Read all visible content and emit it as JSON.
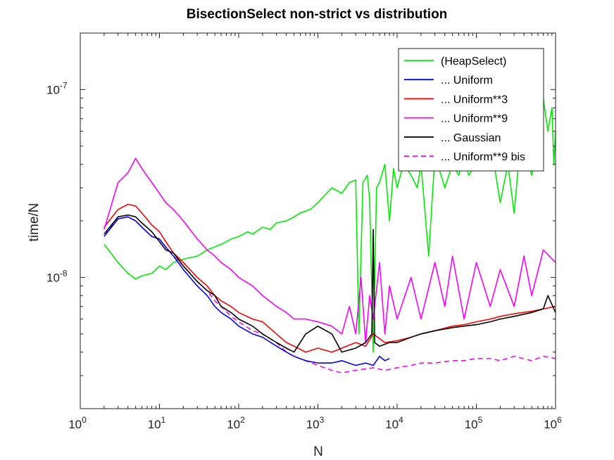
{
  "chart_data": {
    "type": "line",
    "title": "BisectionSelect non-strict vs distribution",
    "xlabel": "N",
    "ylabel": "time/N",
    "xscale": "log",
    "yscale": "log",
    "xlim": [
      1,
      1000000
    ],
    "ylim": [
      2e-09,
      2e-07
    ],
    "grid": false,
    "legend_position": "top-right",
    "x_ticks": [
      {
        "base": "10",
        "exp": "0",
        "value": 1
      },
      {
        "base": "10",
        "exp": "1",
        "value": 10
      },
      {
        "base": "10",
        "exp": "2",
        "value": 100
      },
      {
        "base": "10",
        "exp": "3",
        "value": 1000
      },
      {
        "base": "10",
        "exp": "4",
        "value": 10000
      },
      {
        "base": "10",
        "exp": "5",
        "value": 100000
      },
      {
        "base": "10",
        "exp": "6",
        "value": 1000000
      }
    ],
    "y_ticks": [
      {
        "base": "10",
        "exp": "-8",
        "value": 1e-08
      },
      {
        "base": "10",
        "exp": "-7",
        "value": 1e-07
      }
    ],
    "series": [
      {
        "name": "(HeapSelect)",
        "color": "#00ee00",
        "dash": "solid",
        "x": [
          2,
          3,
          4,
          5,
          6,
          8,
          10,
          12,
          15,
          20,
          30,
          40,
          60,
          80,
          100,
          130,
          150,
          200,
          250,
          300,
          400,
          500,
          600,
          800,
          1000,
          1500,
          2000,
          2500,
          3000,
          3300,
          3700,
          4200,
          4500,
          5000,
          5500,
          6000,
          7000,
          8000,
          9000,
          10000,
          12000,
          15000,
          18000,
          20000,
          25000,
          30000,
          40000,
          50000,
          60000,
          70000,
          80000,
          100000,
          130000,
          160000,
          200000,
          250000,
          300000,
          350000,
          400000,
          500000,
          600000,
          700000,
          800000,
          900000,
          950000,
          1000000
        ],
        "y": [
          1.5e-08,
          1.2e-08,
          1.05e-08,
          9.8e-09,
          1.02e-08,
          1.05e-08,
          1.15e-08,
          1.1e-08,
          1.2e-08,
          1.25e-08,
          1.3e-08,
          1.4e-08,
          1.5e-08,
          1.6e-08,
          1.65e-08,
          1.75e-08,
          1.7e-08,
          1.85e-08,
          1.8e-08,
          1.95e-08,
          2e-08,
          2.1e-08,
          2.2e-08,
          2.3e-08,
          2.5e-08,
          3e-08,
          2.8e-08,
          3.2e-08,
          3.3e-08,
          5e-09,
          3.2e-08,
          3.5e-08,
          2.6e-08,
          4e-09,
          3e-08,
          3.2e-08,
          4e-08,
          2e-08,
          3.8e-08,
          3e-08,
          4e-08,
          3.5e-08,
          3e-08,
          4e-08,
          1.3e-08,
          4.5e-08,
          3e-08,
          4e-08,
          3.5e-08,
          4.5e-08,
          3.5e-08,
          4e-08,
          5e-08,
          4.5e-08,
          2.5e-08,
          4e-08,
          2.2e-08,
          4.5e-08,
          5e-08,
          3.5e-08,
          5e-08,
          9e-08,
          6e-08,
          8e-08,
          4e-08,
          6e-08
        ]
      },
      {
        "name": "... Uniform",
        "color": "#0000ff",
        "dash": "solid",
        "x": [
          2,
          3,
          4,
          5,
          6,
          8,
          10,
          12,
          15,
          20,
          30,
          40,
          50,
          60,
          80,
          100,
          150,
          200,
          300,
          400,
          500,
          700,
          1000,
          1500,
          2000,
          3000,
          4000,
          5000,
          6000,
          7000,
          8000
        ],
        "y": [
          1.65e-08,
          2.05e-08,
          2.1e-08,
          2e-08,
          1.85e-08,
          1.65e-08,
          1.6e-08,
          1.45e-08,
          1.3e-08,
          1.1e-08,
          9e-09,
          8e-09,
          7e-09,
          6.5e-09,
          6e-09,
          5.5e-09,
          5e-09,
          4.8e-09,
          4.3e-09,
          4e-09,
          3.8e-09,
          3.6e-09,
          3.5e-09,
          3.5e-09,
          3.6e-09,
          3.4e-09,
          3.5e-09,
          3.4e-09,
          3.8e-09,
          3.6e-09,
          3.7e-09
        ]
      },
      {
        "name": "... Uniform**3",
        "color": "#ff0000",
        "dash": "solid",
        "x": [
          2,
          3,
          4,
          5,
          6,
          8,
          10,
          12,
          15,
          20,
          30,
          40,
          50,
          60,
          80,
          100,
          150,
          200,
          300,
          400,
          500,
          700,
          1000,
          1500,
          2000,
          3000,
          4000,
          5000,
          7000,
          10000,
          15000,
          20000,
          30000,
          50000,
          70000,
          100000,
          150000,
          200000,
          300000,
          500000,
          700000,
          1000000
        ],
        "y": [
          1.85e-08,
          2.3e-08,
          2.45e-08,
          2.4e-08,
          2.2e-08,
          1.9e-08,
          1.75e-08,
          1.55e-08,
          1.35e-08,
          1.2e-08,
          1e-08,
          9e-09,
          8e-09,
          7.5e-09,
          7e-09,
          6.5e-09,
          6e-09,
          5.8e-09,
          5e-09,
          4.5e-09,
          4.3e-09,
          4e-09,
          4.2e-09,
          4e-09,
          4.2e-09,
          4.5e-09,
          4.3e-09,
          5e-09,
          4.5e-09,
          4.6e-09,
          4.8e-09,
          5e-09,
          5.2e-09,
          5.5e-09,
          5.6e-09,
          5.8e-09,
          6e-09,
          6.2e-09,
          6.4e-09,
          6.6e-09,
          6.8e-09,
          7e-09
        ]
      },
      {
        "name": "... Uniform**9",
        "color": "#ff00ff",
        "dash": "solid",
        "x": [
          2,
          3,
          4,
          5,
          6,
          8,
          10,
          12,
          15,
          20,
          30,
          40,
          50,
          60,
          80,
          100,
          150,
          200,
          300,
          400,
          500,
          700,
          1000,
          1500,
          2000,
          2500,
          3000,
          3500,
          4000,
          4500,
          5000,
          6000,
          7000,
          8000,
          10000,
          15000,
          20000,
          30000,
          40000,
          50000,
          70000,
          100000,
          150000,
          200000,
          300000,
          400000,
          500000,
          700000,
          1000000
        ],
        "y": [
          1.8e-08,
          3.2e-08,
          3.6e-08,
          4.3e-08,
          3.8e-08,
          3.2e-08,
          2.8e-08,
          2.5e-08,
          2.3e-08,
          2e-08,
          1.6e-08,
          1.4e-08,
          1.3e-08,
          1.2e-08,
          1.1e-08,
          1e-08,
          9e-09,
          8e-09,
          7e-09,
          6.5e-09,
          6e-09,
          6e-09,
          5.8e-09,
          5.5e-09,
          5e-09,
          7e-09,
          5e-09,
          1e-08,
          4.5e-09,
          8e-09,
          6e-09,
          1.2e-08,
          5e-09,
          9e-09,
          6e-09,
          1e-08,
          6e-09,
          1.2e-08,
          7e-09,
          1.3e-08,
          6e-09,
          1.2e-08,
          7e-09,
          1.1e-08,
          7e-09,
          1.3e-08,
          8e-09,
          1.4e-08,
          1.2e-08
        ]
      },
      {
        "name": "... Gaussian",
        "color": "#000000",
        "dash": "solid",
        "x": [
          2,
          3,
          4,
          5,
          6,
          8,
          10,
          12,
          15,
          20,
          30,
          40,
          50,
          60,
          80,
          100,
          150,
          200,
          300,
          400,
          500,
          700,
          1000,
          1500,
          2000,
          3000,
          4000,
          4800,
          5000,
          5200,
          6000,
          8000,
          10000,
          15000,
          20000,
          30000,
          50000,
          70000,
          100000,
          150000,
          200000,
          300000,
          500000,
          700000,
          800000,
          1000000
        ],
        "y": [
          1.7e-08,
          2.1e-08,
          2.15e-08,
          2.1e-08,
          1.95e-08,
          1.75e-08,
          1.55e-08,
          1.4e-08,
          1.35e-08,
          1.15e-08,
          9.5e-09,
          8.5e-09,
          8e-09,
          7e-09,
          6.5e-09,
          6e-09,
          5.5e-09,
          5e-09,
          4.5e-09,
          4.2e-09,
          4e-09,
          5e-09,
          5.5e-09,
          5e-09,
          4e-09,
          4.2e-09,
          4.5e-09,
          5e-09,
          1.8e-08,
          4.5e-09,
          4.3e-09,
          4.5e-09,
          4.5e-09,
          4.8e-09,
          5e-09,
          5.2e-09,
          5.4e-09,
          5.5e-09,
          5.6e-09,
          5.8e-09,
          6e-09,
          6.2e-09,
          6.5e-09,
          6.8e-09,
          8e-09,
          6.5e-09
        ]
      },
      {
        "name": "... Uniform**9 bis",
        "color": "#ff00ff",
        "dash": "dashed",
        "x": [
          2,
          3,
          4,
          5,
          6,
          8,
          10,
          12,
          15,
          20,
          30,
          40,
          50,
          60,
          80,
          100,
          150,
          200,
          300,
          400,
          500,
          700,
          1000,
          1500,
          2000,
          3000,
          5000,
          7000,
          10000,
          15000,
          20000,
          30000,
          50000,
          70000,
          100000,
          150000,
          200000,
          300000,
          500000,
          700000,
          1000000
        ],
        "y": [
          1.7e-08,
          2.05e-08,
          2.1e-08,
          2e-08,
          1.85e-08,
          1.65e-08,
          1.6e-08,
          1.45e-08,
          1.3e-08,
          1.15e-08,
          9.5e-09,
          8.5e-09,
          7.5e-09,
          7e-09,
          6.2e-09,
          5.8e-09,
          5.2e-09,
          5e-09,
          4.5e-09,
          4e-09,
          3.8e-09,
          3.6e-09,
          3.4e-09,
          3.2e-09,
          3.1e-09,
          3.2e-09,
          3.3e-09,
          3.2e-09,
          3.3e-09,
          3.4e-09,
          3.5e-09,
          3.5e-09,
          3.6e-09,
          3.6e-09,
          3.7e-09,
          3.7e-09,
          3.6e-09,
          3.8e-09,
          3.6e-09,
          3.8e-09,
          3.7e-09
        ]
      }
    ]
  }
}
